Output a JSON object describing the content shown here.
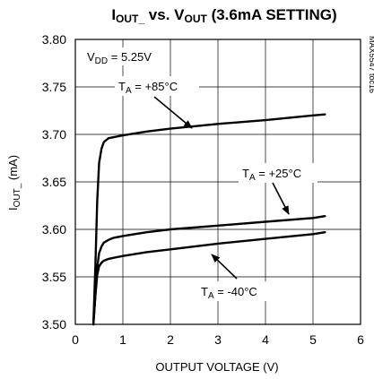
{
  "chart_data": {
    "type": "line",
    "title": "IOUT_ vs. VOUT (3.6mA SETTING)",
    "title_parts": {
      "i": "I",
      "i_sub": "OUT_",
      "vs": " vs. ",
      "v": "V",
      "v_sub": "OUT",
      "rest": " (3.6mA SETTING)"
    },
    "xlabel": "OUTPUT VOLTAGE (V)",
    "ylabel": "IOUT_ (mA)",
    "ylabel_parts": {
      "i": "I",
      "i_sub": "OUT_",
      "rest": " (mA)"
    },
    "xlim": [
      0,
      6
    ],
    "ylim": [
      3.5,
      3.8
    ],
    "x_ticks": [
      "0",
      "1",
      "2",
      "3",
      "4",
      "5",
      "6"
    ],
    "y_ticks": [
      "3.50",
      "3.55",
      "3.60",
      "3.65",
      "3.70",
      "3.75",
      "3.80"
    ],
    "grid": true,
    "condition": {
      "v": "V",
      "v_sub": "DD",
      "rest": " = 5.25V"
    },
    "figure_id": "MAX5547 toc16",
    "series": [
      {
        "label_main": "T",
        "label_sub": "A",
        "label_rest": " = +85°C",
        "x": [
          0.38,
          0.42,
          0.46,
          0.5,
          0.55,
          0.6,
          0.7,
          0.8,
          1.0,
          1.5,
          2.0,
          3.0,
          4.0,
          5.0,
          5.25
        ],
        "y": [
          3.5,
          3.56,
          3.63,
          3.67,
          3.685,
          3.692,
          3.696,
          3.697,
          3.699,
          3.703,
          3.706,
          3.711,
          3.715,
          3.72,
          3.721
        ]
      },
      {
        "label_main": "T",
        "label_sub": "A",
        "label_rest": " = +25°C",
        "x": [
          0.38,
          0.42,
          0.46,
          0.5,
          0.55,
          0.6,
          0.7,
          0.8,
          1.0,
          1.5,
          2.0,
          3.0,
          4.0,
          5.0,
          5.25
        ],
        "y": [
          3.5,
          3.53,
          3.56,
          3.575,
          3.582,
          3.586,
          3.589,
          3.591,
          3.593,
          3.597,
          3.6,
          3.604,
          3.608,
          3.612,
          3.614
        ]
      },
      {
        "label_main": "T",
        "label_sub": "A",
        "label_rest": " = -40°C",
        "x": [
          0.38,
          0.42,
          0.46,
          0.5,
          0.55,
          0.6,
          0.7,
          0.8,
          1.0,
          1.5,
          2.0,
          3.0,
          4.0,
          5.0,
          5.25
        ],
        "y": [
          3.5,
          3.53,
          3.552,
          3.561,
          3.565,
          3.567,
          3.569,
          3.57,
          3.572,
          3.576,
          3.579,
          3.585,
          3.59,
          3.595,
          3.597
        ]
      }
    ]
  }
}
